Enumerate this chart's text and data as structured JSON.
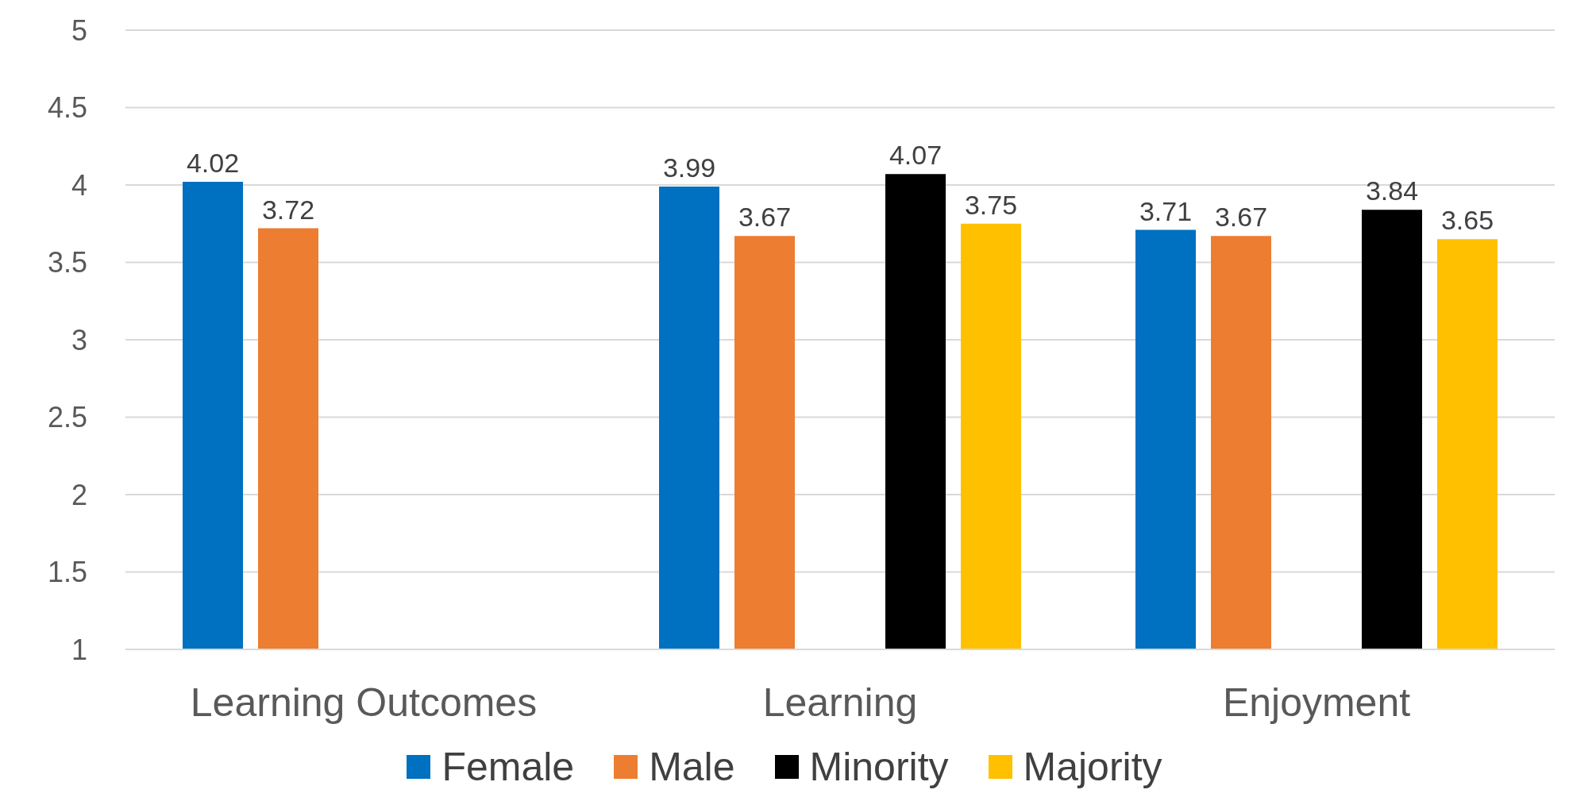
{
  "chart_data": {
    "type": "bar",
    "categories": [
      "Learning Outcomes",
      "Learning",
      "Enjoyment"
    ],
    "series": [
      {
        "name": "Female",
        "color": "#0070c0",
        "values": [
          4.02,
          3.99,
          3.71
        ]
      },
      {
        "name": "Male",
        "color": "#ed7d31",
        "values": [
          3.72,
          3.67,
          3.67
        ]
      },
      {
        "values": [
          null,
          null,
          null
        ]
      },
      {
        "name": "Minority",
        "color": "#000000",
        "values": [
          null,
          4.07,
          3.84
        ]
      },
      {
        "name": "Majority",
        "color": "#ffc000",
        "values": [
          null,
          3.75,
          3.65
        ]
      }
    ],
    "ylim": [
      1,
      5
    ],
    "yticks": [
      1,
      1.5,
      2,
      2.5,
      3,
      3.5,
      4,
      4.5,
      5
    ],
    "grid": "y",
    "legend": "bottom",
    "data_labels": true
  }
}
